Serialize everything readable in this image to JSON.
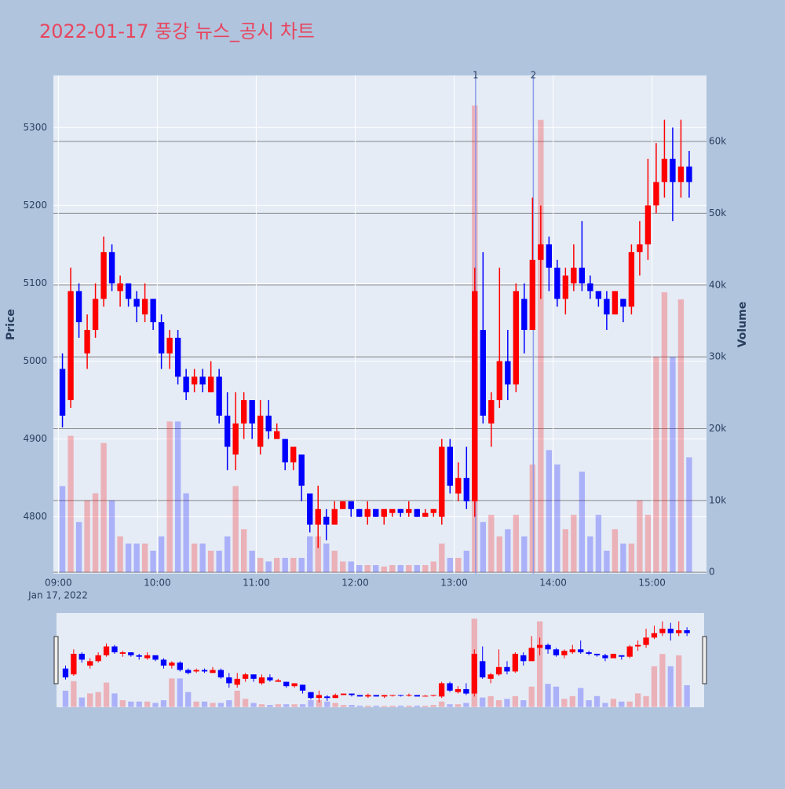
{
  "chart_data": {
    "type": "candlestick",
    "title": "2022-01-17 풍강 뉴스_공시 차트",
    "y_label": "Price",
    "y2_label": "Volume",
    "x_sublabel": "Jan 17, 2022",
    "increasing_color": "#ff0000",
    "decreasing_color": "#0000ff",
    "x": [
      "2022-01-17 09:00",
      "2022-01-17 09:05",
      "2022-01-17 09:10",
      "2022-01-17 09:15",
      "2022-01-17 09:20",
      "2022-01-17 09:25",
      "2022-01-17 09:30",
      "2022-01-17 09:35",
      "2022-01-17 09:40",
      "2022-01-17 09:45",
      "2022-01-17 09:50",
      "2022-01-17 09:55",
      "2022-01-17 10:00",
      "2022-01-17 10:05",
      "2022-01-17 10:10",
      "2022-01-17 10:15",
      "2022-01-17 10:20",
      "2022-01-17 10:25",
      "2022-01-17 10:30",
      "2022-01-17 10:35",
      "2022-01-17 10:40",
      "2022-01-17 10:45",
      "2022-01-17 10:50",
      "2022-01-17 10:55",
      "2022-01-17 11:00",
      "2022-01-17 11:05",
      "2022-01-17 11:10",
      "2022-01-17 11:15",
      "2022-01-17 11:20",
      "2022-01-17 11:25",
      "2022-01-17 11:30",
      "2022-01-17 11:35",
      "2022-01-17 11:40",
      "2022-01-17 11:45",
      "2022-01-17 11:50",
      "2022-01-17 11:55",
      "2022-01-17 12:00",
      "2022-01-17 12:05",
      "2022-01-17 12:10",
      "2022-01-17 12:15",
      "2022-01-17 12:20",
      "2022-01-17 12:25",
      "2022-01-17 12:30",
      "2022-01-17 12:35",
      "2022-01-17 12:40",
      "2022-01-17 12:45",
      "2022-01-17 12:50",
      "2022-01-17 12:55",
      "2022-01-17 13:00",
      "2022-01-17 13:05",
      "2022-01-17 13:10",
      "2022-01-17 13:15",
      "2022-01-17 13:20",
      "2022-01-17 13:25",
      "2022-01-17 13:30",
      "2022-01-17 13:35",
      "2022-01-17 13:40",
      "2022-01-17 13:45",
      "2022-01-17 13:50",
      "2022-01-17 13:55",
      "2022-01-17 14:00",
      "2022-01-17 14:05",
      "2022-01-17 14:10",
      "2022-01-17 14:15",
      "2022-01-17 14:20",
      "2022-01-17 14:25",
      "2022-01-17 14:30",
      "2022-01-17 14:35",
      "2022-01-17 14:40",
      "2022-01-17 14:45",
      "2022-01-17 14:50",
      "2022-01-17 14:55",
      "2022-01-17 15:00",
      "2022-01-17 15:05",
      "2022-01-17 15:10",
      "2022-01-17 15:15",
      "2022-01-17 15:20"
    ],
    "open": [
      4990,
      4950,
      5090,
      5010,
      5040,
      5080,
      5140,
      5090,
      5100,
      5080,
      5060,
      5080,
      5050,
      5010,
      5030,
      4980,
      4970,
      4980,
      4960,
      4980,
      4930,
      4880,
      4920,
      4950,
      4890,
      4930,
      4900,
      4900,
      4870,
      4880,
      4830,
      4790,
      4800,
      4790,
      4810,
      4820,
      4810,
      4800,
      4810,
      4800,
      4805,
      4810,
      4805,
      4810,
      4800,
      4805,
      4800,
      4890,
      4830,
      4850,
      4820,
      5040,
      4920,
      4950,
      5000,
      4970,
      5080,
      5040,
      5130,
      5150,
      5120,
      5080,
      5100,
      5120,
      5100,
      5090,
      5080,
      5060,
      5080,
      5070,
      5140,
      5150,
      5200,
      5230,
      5260,
      5230,
      5250
    ],
    "high": [
      5010,
      5120,
      5100,
      5060,
      5100,
      5160,
      5150,
      5110,
      5100,
      5090,
      5100,
      5080,
      5060,
      5040,
      5040,
      4990,
      4990,
      4990,
      5000,
      4990,
      4960,
      4960,
      4960,
      4950,
      4950,
      4950,
      4920,
      4900,
      4890,
      4880,
      4830,
      4840,
      4810,
      4820,
      4820,
      4820,
      4810,
      4820,
      4810,
      4810,
      4810,
      4810,
      4820,
      4810,
      4810,
      4810,
      4900,
      4900,
      4870,
      4890,
      5120,
      5140,
      4960,
      5120,
      5040,
      5100,
      5100,
      5210,
      5200,
      5160,
      5130,
      5120,
      5150,
      5180,
      5110,
      5090,
      5090,
      5090,
      5080,
      5150,
      5180,
      5260,
      5280,
      5310,
      5300,
      5310,
      5270
    ],
    "low": [
      4915,
      4940,
      5030,
      4990,
      5030,
      5070,
      5090,
      5070,
      5070,
      5050,
      5050,
      5040,
      4990,
      4990,
      4970,
      4950,
      4960,
      4960,
      4960,
      4920,
      4860,
      4860,
      4900,
      4900,
      4880,
      4900,
      4900,
      4860,
      4860,
      4820,
      4780,
      4760,
      4770,
      4790,
      4810,
      4800,
      4800,
      4790,
      4800,
      4790,
      4800,
      4800,
      4800,
      4800,
      4800,
      4800,
      4790,
      4830,
      4820,
      4810,
      4800,
      4920,
      4890,
      4940,
      4950,
      4960,
      5010,
      5040,
      5080,
      5090,
      5070,
      5060,
      5090,
      5090,
      5080,
      5070,
      5040,
      5060,
      5050,
      5060,
      5110,
      5130,
      5190,
      5210,
      5180,
      5210,
      5210
    ],
    "close": [
      4930,
      5090,
      5050,
      5040,
      5080,
      5140,
      5100,
      5100,
      5080,
      5070,
      5080,
      5050,
      5010,
      5030,
      4980,
      4960,
      4980,
      4970,
      4980,
      4930,
      4890,
      4920,
      4950,
      4920,
      4930,
      4910,
      4910,
      4870,
      4890,
      4840,
      4790,
      4810,
      4790,
      4810,
      4820,
      4810,
      4800,
      4810,
      4800,
      4810,
      4810,
      4805,
      4810,
      4800,
      4805,
      4810,
      4890,
      4840,
      4850,
      4820,
      5090,
      4930,
      4950,
      5000,
      4970,
      5090,
      5040,
      5130,
      5150,
      5120,
      5080,
      5110,
      5120,
      5100,
      5090,
      5080,
      5060,
      5090,
      5070,
      5140,
      5150,
      5200,
      5230,
      5260,
      5230,
      5250,
      5230
    ],
    "volume": [
      12000,
      19000,
      7000,
      10000,
      11000,
      18000,
      10000,
      5000,
      4000,
      4000,
      4000,
      3000,
      5000,
      21000,
      21000,
      11000,
      4000,
      4000,
      3000,
      3000,
      5000,
      12000,
      6000,
      3000,
      2000,
      1500,
      2000,
      2000,
      2000,
      2000,
      5000,
      5000,
      4000,
      3000,
      1500,
      1500,
      1000,
      1000,
      1000,
      800,
      1000,
      1000,
      1000,
      1000,
      1000,
      1500,
      4000,
      2000,
      2000,
      3000,
      65000,
      7000,
      8000,
      5000,
      6000,
      8000,
      5000,
      15000,
      63000,
      17000,
      15000,
      6000,
      8000,
      14000,
      5000,
      8000,
      3000,
      6000,
      4000,
      4000,
      10000,
      8000,
      30000,
      39000,
      30000,
      38000,
      16000
    ],
    "xlim": [
      "2022-01-17 08:57",
      "2022-01-17 15:33"
    ],
    "xticks": [
      {
        "value": "2022-01-17 09:00",
        "label": "09:00"
      },
      {
        "value": "2022-01-17 10:00",
        "label": "10:00"
      },
      {
        "value": "2022-01-17 11:00",
        "label": "11:00"
      },
      {
        "value": "2022-01-17 12:00",
        "label": "12:00"
      },
      {
        "value": "2022-01-17 13:00",
        "label": "13:00"
      },
      {
        "value": "2022-01-17 14:00",
        "label": "14:00"
      },
      {
        "value": "2022-01-17 15:00",
        "label": "15:00"
      }
    ],
    "ylim": [
      4727,
      5367
    ],
    "yticks": [
      4800,
      4900,
      5000,
      5100,
      5200,
      5300
    ],
    "y2lim": [
      -200,
      69200
    ],
    "y2ticks": [
      0,
      {
        "value": 10000,
        "label": "10k"
      },
      {
        "value": 20000,
        "label": "20k"
      },
      {
        "value": 30000,
        "label": "30k"
      },
      {
        "value": 40000,
        "label": "40k"
      },
      {
        "value": 50000,
        "label": "50k"
      },
      {
        "value": 60000,
        "label": "60k"
      }
    ],
    "annotations": [
      {
        "x": "2022-01-17 13:13",
        "text": "1"
      },
      {
        "x": "2022-01-17 13:48",
        "text": "2"
      }
    ],
    "grid": true,
    "rangeslider": true
  }
}
